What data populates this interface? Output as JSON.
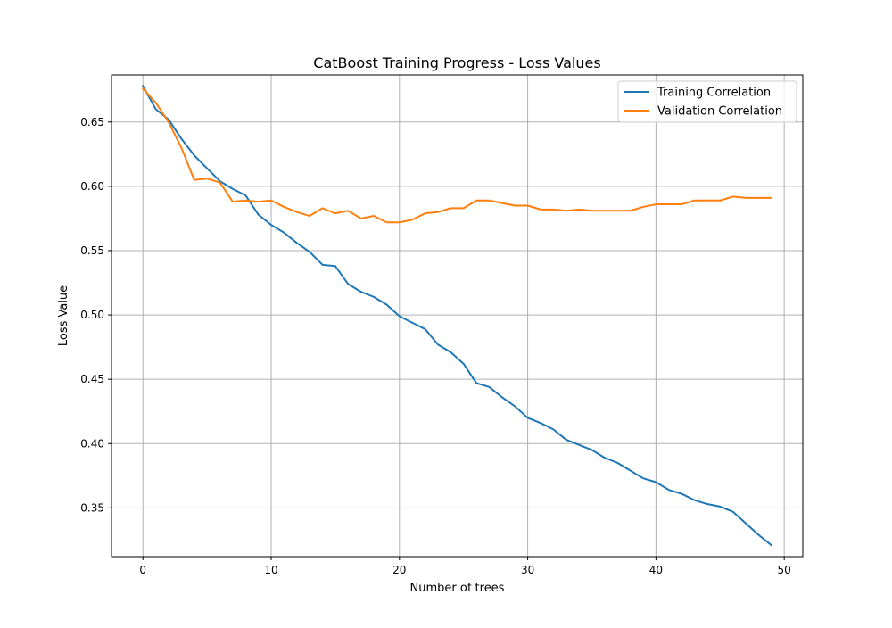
{
  "chart_data": {
    "type": "line",
    "title": "CatBoost Training Progress - Loss Values",
    "xlabel": "Number of trees",
    "ylabel": "Loss Value",
    "xlim": [
      -2.45,
      51.45
    ],
    "ylim": [
      0.3121,
      0.6866
    ],
    "xticks": [
      0,
      10,
      20,
      30,
      40,
      50
    ],
    "yticks": [
      0.35,
      0.4,
      0.45,
      0.5,
      0.55,
      0.6,
      0.65
    ],
    "ytick_labels": [
      "0.35",
      "0.40",
      "0.45",
      "0.50",
      "0.55",
      "0.60",
      "0.65"
    ],
    "grid": true,
    "legend_position": "top-right",
    "x": [
      0,
      1,
      2,
      3,
      4,
      5,
      6,
      7,
      8,
      9,
      10,
      11,
      12,
      13,
      14,
      15,
      16,
      17,
      18,
      19,
      20,
      21,
      22,
      23,
      24,
      25,
      26,
      27,
      28,
      29,
      30,
      31,
      32,
      33,
      34,
      35,
      36,
      37,
      38,
      39,
      40,
      41,
      42,
      43,
      44,
      45,
      46,
      47,
      48,
      49
    ],
    "series": [
      {
        "name": "Training Correlation",
        "color": "#1f77b4",
        "values": [
          0.678,
          0.66,
          0.652,
          0.637,
          0.624,
          0.614,
          0.604,
          0.598,
          0.593,
          0.578,
          0.57,
          0.564,
          0.556,
          0.549,
          0.539,
          0.538,
          0.524,
          0.518,
          0.514,
          0.508,
          0.499,
          0.494,
          0.489,
          0.477,
          0.471,
          0.462,
          0.447,
          0.444,
          0.436,
          0.429,
          0.42,
          0.416,
          0.411,
          0.403,
          0.399,
          0.395,
          0.389,
          0.385,
          0.379,
          0.373,
          0.37,
          0.364,
          0.361,
          0.356,
          0.353,
          0.351,
          0.347,
          0.338,
          0.329,
          0.321
        ]
      },
      {
        "name": "Validation Correlation",
        "color": "#ff7f0e",
        "values": [
          0.676,
          0.665,
          0.65,
          0.63,
          0.605,
          0.606,
          0.603,
          0.588,
          0.589,
          0.588,
          0.589,
          0.584,
          0.58,
          0.577,
          0.583,
          0.579,
          0.581,
          0.575,
          0.577,
          0.572,
          0.572,
          0.574,
          0.579,
          0.58,
          0.583,
          0.583,
          0.589,
          0.589,
          0.587,
          0.585,
          0.585,
          0.582,
          0.582,
          0.581,
          0.582,
          0.581,
          0.581,
          0.581,
          0.581,
          0.584,
          0.586,
          0.586,
          0.586,
          0.589,
          0.589,
          0.589,
          0.592,
          0.591,
          0.591,
          0.591
        ]
      }
    ]
  }
}
